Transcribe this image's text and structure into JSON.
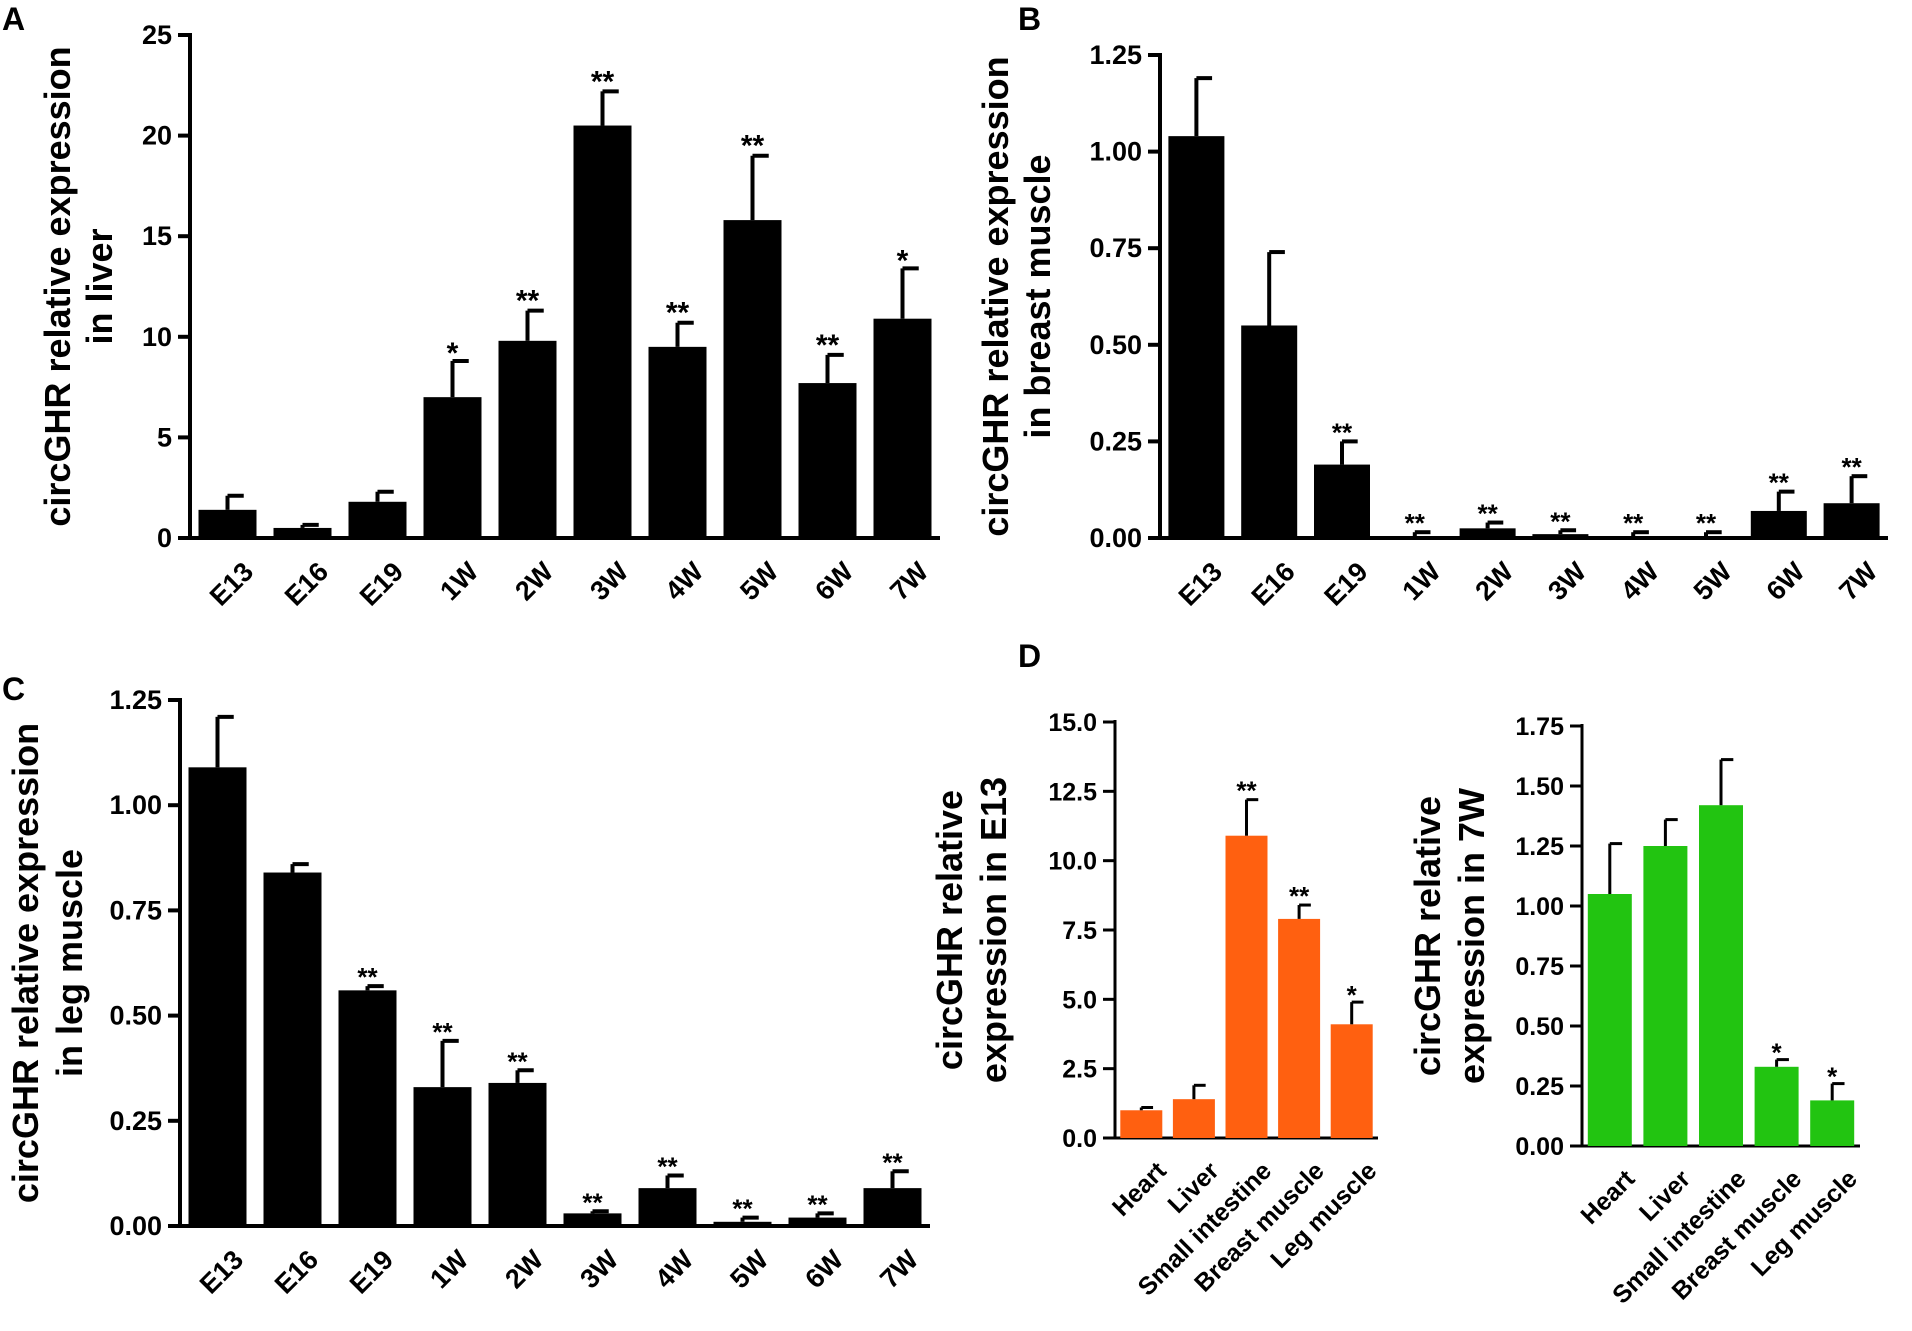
{
  "figure": {
    "panels": [
      {
        "letter": "A"
      },
      {
        "letter": "B"
      },
      {
        "letter": "C"
      },
      {
        "letter": "D"
      }
    ]
  },
  "chart_data": [
    {
      "id": "A",
      "type": "bar",
      "ylabel_lines": [
        "circGHR relative expression",
        "in liver"
      ],
      "categories": [
        "E13",
        "E16",
        "E19",
        "1W",
        "2W",
        "3W",
        "4W",
        "5W",
        "6W",
        "7W"
      ],
      "values": [
        1.4,
        0.5,
        1.8,
        7.0,
        9.8,
        20.5,
        9.5,
        15.8,
        7.7,
        10.9
      ],
      "errors": [
        0.7,
        0.15,
        0.5,
        1.8,
        1.5,
        1.7,
        1.2,
        3.2,
        1.4,
        2.5
      ],
      "significance": [
        "",
        "",
        "",
        "*",
        "**",
        "**",
        "**",
        "**",
        "**",
        "*"
      ],
      "ylim": [
        0,
        25
      ],
      "yticks": [
        0,
        5,
        10,
        15,
        20,
        25
      ],
      "ytick_labels": [
        "0",
        "5",
        "10",
        "15",
        "20",
        "25"
      ],
      "color": "#000000"
    },
    {
      "id": "B",
      "type": "bar",
      "ylabel_lines": [
        "circGHR relative expression",
        "in breast muscle"
      ],
      "categories": [
        "E13",
        "E16",
        "E19",
        "1W",
        "2W",
        "3W",
        "4W",
        "5W",
        "6W",
        "7W"
      ],
      "values": [
        1.04,
        0.55,
        0.19,
        0.005,
        0.025,
        0.01,
        0.005,
        0.005,
        0.07,
        0.09
      ],
      "errors": [
        0.15,
        0.19,
        0.06,
        0.01,
        0.015,
        0.01,
        0.01,
        0.01,
        0.05,
        0.07
      ],
      "significance": [
        "",
        "",
        "**",
        "**",
        "**",
        "**",
        "**",
        "**",
        "**",
        "**"
      ],
      "ylim": [
        0,
        1.25
      ],
      "yticks": [
        0,
        0.25,
        0.5,
        0.75,
        1.0,
        1.25
      ],
      "ytick_labels": [
        "0.00",
        "0.25",
        "0.50",
        "0.75",
        "1.00",
        "1.25"
      ],
      "color": "#000000"
    },
    {
      "id": "C",
      "type": "bar",
      "ylabel_lines": [
        "circGHR relative expression",
        "in leg muscle"
      ],
      "categories": [
        "E13",
        "E16",
        "E19",
        "1W",
        "2W",
        "3W",
        "4W",
        "5W",
        "6W",
        "7W"
      ],
      "values": [
        1.09,
        0.84,
        0.56,
        0.33,
        0.34,
        0.03,
        0.09,
        0.01,
        0.02,
        0.09
      ],
      "errors": [
        0.12,
        0.02,
        0.01,
        0.11,
        0.03,
        0.005,
        0.03,
        0.01,
        0.01,
        0.04
      ],
      "significance": [
        "",
        "",
        "**",
        "**",
        "**",
        "**",
        "**",
        "**",
        "**",
        "**"
      ],
      "ylim": [
        0,
        1.25
      ],
      "yticks": [
        0,
        0.25,
        0.5,
        0.75,
        1.0,
        1.25
      ],
      "ytick_labels": [
        "0.00",
        "0.25",
        "0.50",
        "0.75",
        "1.00",
        "1.25"
      ],
      "color": "#000000"
    },
    {
      "id": "D1",
      "type": "bar",
      "ylabel_lines": [
        "circGHR relative",
        "expression in E13"
      ],
      "categories": [
        "Heart",
        "Liver",
        "Small intestine",
        "Breast muscle",
        "Leg muscle"
      ],
      "values": [
        1.0,
        1.4,
        10.9,
        7.9,
        4.1
      ],
      "errors": [
        0.1,
        0.5,
        1.3,
        0.5,
        0.8
      ],
      "significance": [
        "",
        "",
        "**",
        "**",
        "*"
      ],
      "ylim": [
        0,
        15
      ],
      "yticks": [
        0,
        2.5,
        5,
        7.5,
        10,
        12.5,
        15
      ],
      "ytick_labels": [
        "0.0",
        "2.5",
        "5.0",
        "7.5",
        "10.0",
        "12.5",
        "15.0"
      ],
      "color": "#ff6010"
    },
    {
      "id": "D2",
      "type": "bar",
      "ylabel_lines": [
        "circGHR relative",
        "expression in 7W"
      ],
      "categories": [
        "Heart",
        "Liver",
        "Small intestine",
        "Breast muscle",
        "Leg muscle"
      ],
      "values": [
        1.05,
        1.25,
        1.42,
        0.33,
        0.19
      ],
      "errors": [
        0.21,
        0.11,
        0.19,
        0.03,
        0.07
      ],
      "significance": [
        "",
        "",
        "",
        "*",
        "*"
      ],
      "ylim": [
        0,
        1.75
      ],
      "yticks": [
        0,
        0.25,
        0.5,
        0.75,
        1.0,
        1.25,
        1.5,
        1.75
      ],
      "ytick_labels": [
        "0.00",
        "0.25",
        "0.50",
        "0.75",
        "1.00",
        "1.25",
        "1.50",
        "1.75"
      ],
      "color": "#22c411"
    }
  ]
}
